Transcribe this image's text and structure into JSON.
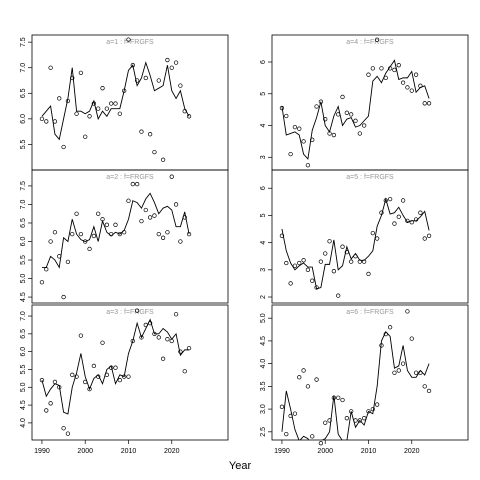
{
  "x_label": "Year",
  "chart_data": [
    {
      "type": "scatter-line",
      "title": "a=1 : f=FRGFS",
      "xlim": [
        1987.7,
        2033
      ],
      "ylim": [
        5.0,
        7.64
      ],
      "yticks": [
        5.5,
        {
          "value": 6,
          "label": "6.0"
        },
        6.5,
        {
          "value": 7,
          "label": "7.0"
        },
        7.5
      ],
      "x": [
        1990,
        1991,
        1992,
        1993,
        1994,
        1995,
        1996,
        1997,
        1998,
        1999,
        2000,
        2001,
        2002,
        2003,
        2004,
        2005,
        2006,
        2007,
        2008,
        2009,
        2010,
        2011,
        2012,
        2013,
        2014,
        2015,
        2016,
        2017,
        2018,
        2019,
        2020,
        2021,
        2022,
        2023,
        2024
      ],
      "series": [
        {
          "style": "points",
          "color": "#000000",
          "values": [
            6.0,
            5.95,
            7.0,
            5.95,
            6.4,
            5.45,
            6.35,
            6.8,
            6.1,
            6.9,
            5.65,
            6.05,
            6.3,
            6.2,
            6.6,
            6.2,
            6.3,
            6.3,
            6.1,
            6.55,
            7.55,
            7.05,
            6.75,
            5.75,
            6.8,
            5.7,
            5.35,
            6.75,
            5.2,
            7.15,
            7.0,
            7.1,
            6.65,
            6.15,
            6.05
          ]
        },
        {
          "style": "line",
          "color": "#000000",
          "values": [
            6.05,
            6.15,
            6.25,
            5.7,
            5.6,
            6.0,
            6.4,
            7.0,
            6.15,
            6.15,
            6.1,
            6.15,
            6.35,
            6.0,
            6.15,
            6.05,
            6.2,
            6.2,
            6.2,
            6.55,
            6.95,
            7.05,
            6.65,
            6.8,
            7.1,
            6.85,
            6.55,
            6.6,
            6.65,
            7.05,
            6.55,
            6.4,
            6.55,
            6.2,
            6.05
          ]
        }
      ]
    },
    {
      "type": "scatter-line",
      "title": "a=2 : f=FRGFS",
      "xlim": [
        1987.7,
        2033
      ],
      "ylim": [
        4.34,
        7.93
      ],
      "yticks": [
        4.5,
        {
          "value": 5,
          "label": "5.0"
        },
        5.5,
        {
          "value": 6,
          "label": "6.0"
        },
        6.5,
        {
          "value": 7,
          "label": "7.0"
        },
        7.5
      ],
      "x": [
        1990,
        1991,
        1992,
        1993,
        1994,
        1995,
        1996,
        1997,
        1998,
        1999,
        2000,
        2001,
        2002,
        2003,
        2004,
        2005,
        2006,
        2007,
        2008,
        2009,
        2010,
        2011,
        2012,
        2013,
        2014,
        2015,
        2016,
        2017,
        2018,
        2019,
        2020,
        2021,
        2022,
        2023,
        2024
      ],
      "series": [
        {
          "style": "points",
          "color": "#000000",
          "values": [
            4.9,
            5.25,
            6.0,
            6.25,
            5.6,
            4.5,
            5.45,
            6.2,
            6.75,
            6.2,
            6.0,
            5.8,
            6.15,
            6.75,
            6.6,
            6.45,
            6.2,
            6.45,
            6.2,
            6.25,
            7.1,
            7.55,
            7.55,
            6.55,
            6.85,
            6.65,
            6.7,
            6.2,
            6.1,
            6.25,
            7.75,
            7.0,
            6.0,
            6.65,
            6.2
          ]
        },
        {
          "style": "line",
          "color": "#000000",
          "values": [
            5.3,
            5.3,
            5.6,
            5.5,
            5.3,
            6.1,
            6.0,
            6.6,
            6.2,
            6.05,
            6.0,
            6.05,
            6.4,
            6.0,
            6.55,
            6.25,
            6.15,
            6.25,
            6.2,
            6.3,
            6.6,
            7.1,
            7.05,
            6.9,
            7.15,
            7.3,
            7.05,
            6.75,
            6.9,
            6.95,
            6.85,
            6.4,
            6.4,
            6.8,
            6.2
          ]
        }
      ]
    },
    {
      "type": "scatter-line",
      "title": "a=3 : f=FRGFS",
      "xlim": [
        1987.7,
        2033
      ],
      "ylim": [
        3.52,
        7.31
      ],
      "xticks": [
        1990,
        2000,
        2010,
        2020
      ],
      "yticks": [
        {
          "value": 4,
          "label": "4.0"
        },
        4.5,
        {
          "value": 5,
          "label": "5.0"
        },
        5.5,
        {
          "value": 6,
          "label": "6.0"
        },
        6.5,
        {
          "value": 7,
          "label": "7.0"
        }
      ],
      "x": [
        1990,
        1991,
        1992,
        1993,
        1994,
        1995,
        1996,
        1997,
        1998,
        1999,
        2000,
        2001,
        2002,
        2003,
        2004,
        2005,
        2006,
        2007,
        2008,
        2009,
        2010,
        2011,
        2012,
        2013,
        2014,
        2015,
        2016,
        2017,
        2018,
        2019,
        2020,
        2021,
        2022,
        2023,
        2024
      ],
      "series": [
        {
          "style": "points",
          "color": "#000000",
          "values": [
            5.2,
            4.35,
            4.55,
            5.15,
            5.0,
            3.85,
            3.7,
            5.35,
            5.3,
            6.45,
            5.15,
            4.95,
            5.6,
            5.3,
            6.25,
            5.35,
            5.55,
            5.55,
            5.2,
            5.3,
            5.3,
            6.3,
            7.15,
            6.4,
            6.75,
            6.8,
            6.5,
            6.4,
            5.8,
            6.35,
            6.3,
            7.05,
            6.0,
            5.45,
            6.1
          ]
        },
        {
          "style": "line",
          "color": "#000000",
          "values": [
            5.2,
            4.75,
            4.95,
            5.1,
            5.05,
            4.3,
            4.25,
            5.0,
            5.4,
            5.95,
            5.3,
            4.95,
            5.25,
            5.35,
            5.1,
            5.5,
            5.6,
            5.1,
            5.35,
            5.3,
            5.95,
            6.3,
            6.8,
            6.4,
            6.65,
            6.9,
            6.5,
            6.5,
            6.65,
            6.55,
            6.35,
            6.5,
            5.9,
            6.05,
            6.05
          ]
        }
      ]
    },
    {
      "type": "scatter-line",
      "title": "a=4 : f=FRGFS",
      "xlim": [
        1987.7,
        2033
      ],
      "ylim": [
        2.6,
        6.85
      ],
      "yticks": [
        3,
        4,
        5,
        6
      ],
      "x": [
        1990,
        1991,
        1992,
        1993,
        1994,
        1995,
        1996,
        1997,
        1998,
        1999,
        2000,
        2001,
        2002,
        2003,
        2004,
        2005,
        2006,
        2007,
        2008,
        2009,
        2010,
        2011,
        2012,
        2013,
        2014,
        2015,
        2016,
        2017,
        2018,
        2019,
        2020,
        2021,
        2022,
        2023,
        2024
      ],
      "series": [
        {
          "style": "points",
          "color": "#000000",
          "values": [
            4.55,
            4.3,
            3.1,
            3.95,
            3.9,
            3.5,
            2.75,
            3.55,
            4.6,
            4.75,
            4.2,
            3.75,
            3.7,
            4.35,
            4.9,
            4.4,
            4.35,
            4.15,
            3.75,
            4.0,
            5.6,
            5.8,
            6.7,
            5.8,
            5.5,
            5.8,
            5.75,
            5.9,
            5.35,
            5.2,
            5.1,
            5.6,
            5.25,
            4.7,
            4.7
          ]
        },
        {
          "style": "line",
          "color": "#000000",
          "values": [
            4.6,
            3.7,
            3.75,
            3.8,
            3.7,
            3.1,
            2.95,
            3.85,
            4.25,
            4.75,
            4.0,
            3.8,
            4.3,
            4.6,
            4.0,
            4.2,
            4.25,
            3.95,
            4.0,
            4.15,
            4.3,
            5.4,
            5.55,
            5.35,
            5.65,
            5.85,
            6.05,
            5.45,
            5.5,
            5.5,
            5.7,
            5.05,
            5.2,
            5.25,
            4.85
          ]
        }
      ]
    },
    {
      "type": "scatter-line",
      "title": "a=5 : f=FRGFS",
      "xlim": [
        1987.7,
        2033
      ],
      "ylim": [
        1.78,
        6.67
      ],
      "yticks": [
        2,
        3,
        4,
        5,
        6
      ],
      "x": [
        1990,
        1991,
        1992,
        1993,
        1994,
        1995,
        1996,
        1997,
        1998,
        1999,
        2000,
        2001,
        2002,
        2003,
        2004,
        2005,
        2006,
        2007,
        2008,
        2009,
        2010,
        2011,
        2012,
        2013,
        2014,
        2015,
        2016,
        2017,
        2018,
        2019,
        2020,
        2021,
        2022,
        2023,
        2024
      ],
      "series": [
        {
          "style": "points",
          "color": "#000000",
          "values": [
            4.25,
            3.25,
            2.5,
            3.15,
            3.25,
            3.35,
            3.0,
            2.6,
            2.35,
            3.3,
            3.6,
            4.05,
            2.95,
            2.05,
            3.85,
            3.65,
            3.3,
            3.5,
            3.3,
            3.3,
            2.85,
            4.35,
            4.15,
            5.1,
            5.55,
            5.6,
            4.7,
            4.95,
            5.55,
            4.8,
            4.75,
            4.85,
            5.1,
            4.15,
            4.25
          ]
        },
        {
          "style": "line",
          "color": "#000000",
          "values": [
            4.5,
            3.7,
            3.25,
            3.0,
            3.15,
            3.25,
            3.1,
            3.1,
            2.3,
            2.35,
            3.2,
            3.2,
            4.1,
            3.0,
            3.15,
            3.85,
            3.4,
            3.6,
            3.35,
            3.35,
            3.5,
            3.7,
            4.6,
            5.0,
            5.6,
            5.05,
            5.1,
            5.3,
            5.0,
            4.75,
            4.8,
            4.8,
            4.95,
            5.15,
            4.45
          ]
        }
      ]
    },
    {
      "type": "scatter-line",
      "title": "a=6 : f=FRGFS",
      "xlim": [
        1987.7,
        2033
      ],
      "ylim": [
        2.32,
        5.29
      ],
      "xticks": [
        1990,
        2000,
        2010,
        2020
      ],
      "yticks": [
        2.5,
        {
          "value": 3,
          "label": "3.0"
        },
        3.5,
        {
          "value": 4,
          "label": "4.0"
        },
        4.5,
        {
          "value": 5,
          "label": "5.0"
        }
      ],
      "x": [
        1990,
        1991,
        1992,
        1993,
        1994,
        1995,
        1996,
        1997,
        1998,
        1999,
        2000,
        2001,
        2002,
        2003,
        2004,
        2005,
        2006,
        2007,
        2008,
        2009,
        2010,
        2011,
        2012,
        2013,
        2014,
        2015,
        2016,
        2017,
        2018,
        2019,
        2020,
        2021,
        2022,
        2023,
        2024
      ],
      "series": [
        {
          "style": "points",
          "color": "#000000",
          "values": [
            3.05,
            2.45,
            2.85,
            2.9,
            3.7,
            3.85,
            3.5,
            2.4,
            3.65,
            2.25,
            2.7,
            2.75,
            3.25,
            3.25,
            3.2,
            2.8,
            2.95,
            2.75,
            2.75,
            2.8,
            2.95,
            3.0,
            3.1,
            4.4,
            4.65,
            4.8,
            3.8,
            3.85,
            4.0,
            5.15,
            4.55,
            3.8,
            3.8,
            3.5,
            3.4
          ]
        },
        {
          "style": "line",
          "color": "#000000",
          "values": [
            2.5,
            3.4,
            3.0,
            2.55,
            2.3,
            2.4,
            2.35,
            2.15,
            2.2,
            2.3,
            2.35,
            2.5,
            3.3,
            2.45,
            2.3,
            2.3,
            2.95,
            2.6,
            2.75,
            2.65,
            2.95,
            2.9,
            3.5,
            4.5,
            4.7,
            4.6,
            3.9,
            3.95,
            4.4,
            3.85,
            3.7,
            3.7,
            3.85,
            3.75,
            4.0
          ]
        }
      ]
    }
  ]
}
